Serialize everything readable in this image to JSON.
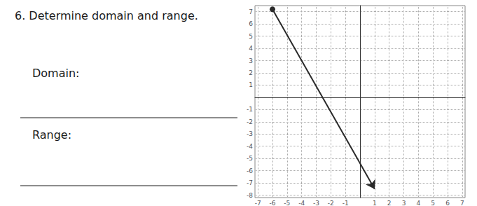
{
  "chart_data": {
    "type": "line",
    "title": "6. Determine domain and range.",
    "annotations": [
      "Domain:",
      "Range:"
    ],
    "x": [
      -6,
      1
    ],
    "values": [
      7.2,
      -7.5
    ],
    "color": "#2a2a2a",
    "xlim": [
      -7.2,
      7.2
    ],
    "ylim": [
      -8.2,
      7.5
    ],
    "xticks": [
      -7,
      -6,
      -5,
      -4,
      -3,
      -2,
      -1,
      1,
      2,
      3,
      4,
      5,
      6,
      7
    ],
    "yticks": [
      -8,
      -7,
      -6,
      -5,
      -4,
      -3,
      -2,
      -1,
      1,
      2,
      3,
      4,
      5,
      6,
      7
    ],
    "grid": true
  }
}
